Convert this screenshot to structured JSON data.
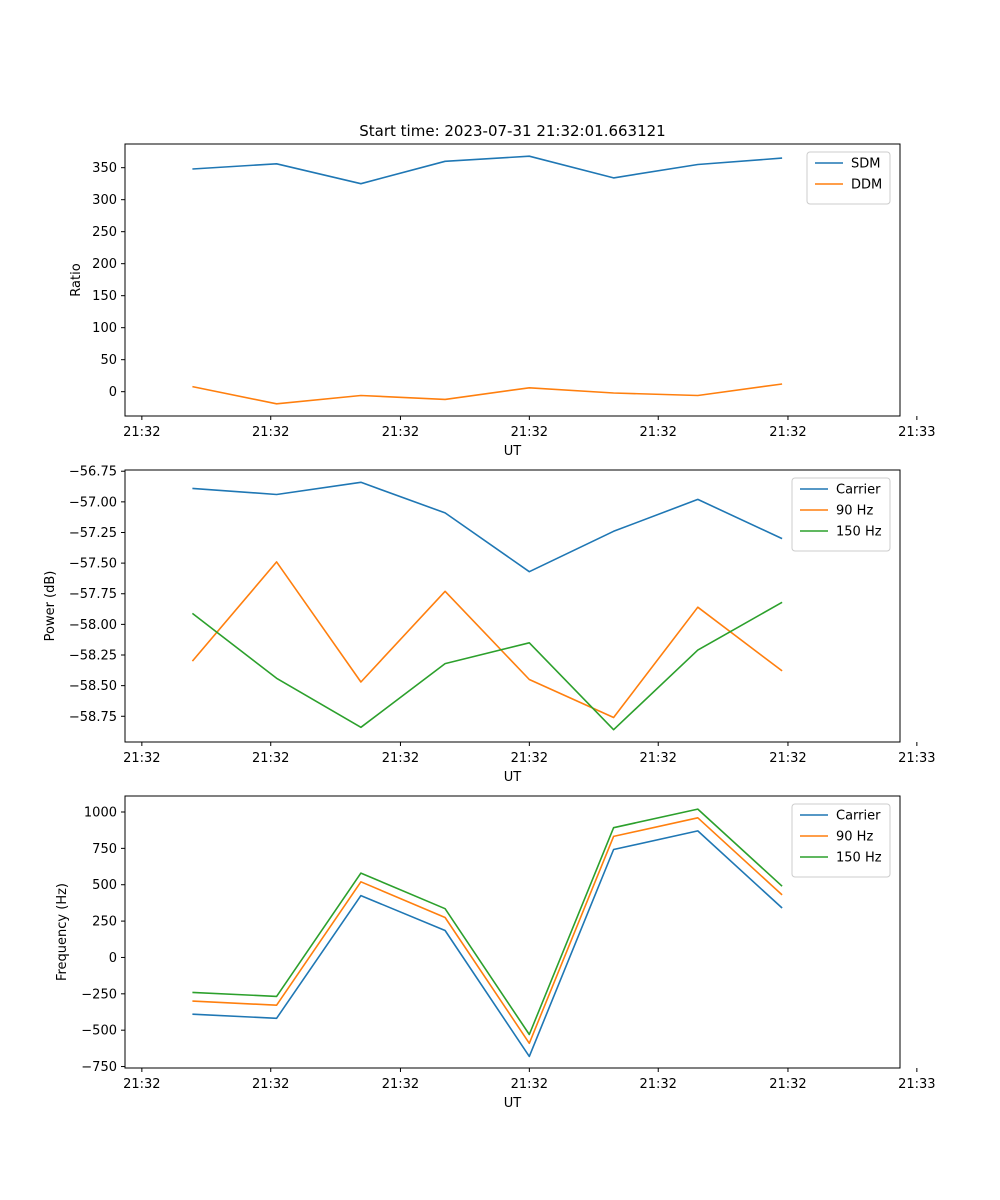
{
  "chart_data": [
    {
      "type": "line",
      "title": "Start time: 2023-07-31 21:32:01.663121",
      "xlabel": "UT",
      "ylabel": "Ratio",
      "x": [
        1,
        2,
        3,
        4,
        5,
        6,
        7,
        8
      ],
      "xlim": [
        0.2,
        9.4
      ],
      "x_ticks": [
        0.4,
        1.93,
        3.47,
        5.0,
        6.53,
        8.07,
        9.6
      ],
      "x_tick_labels": [
        "21:32",
        "21:32",
        "21:32",
        "21:32",
        "21:32",
        "21:32",
        "21:33"
      ],
      "ylim": [
        -38,
        387
      ],
      "y_ticks": [
        0,
        50,
        100,
        150,
        200,
        250,
        300,
        350
      ],
      "y_tick_labels": [
        "0",
        "50",
        "100",
        "150",
        "200",
        "250",
        "300",
        "350"
      ],
      "legend_position": "top-right",
      "series": [
        {
          "name": "SDM",
          "color": "#1f77b4",
          "values": [
            348,
            356,
            325,
            360,
            368,
            334,
            355,
            365
          ]
        },
        {
          "name": "DDM",
          "color": "#ff7f0e",
          "values": [
            8,
            -19,
            -6,
            -12,
            6,
            -2,
            -6,
            12
          ]
        }
      ]
    },
    {
      "type": "line",
      "title": "",
      "xlabel": "UT",
      "ylabel": "Power (dB)",
      "x": [
        1,
        2,
        3,
        4,
        5,
        6,
        7,
        8
      ],
      "xlim": [
        0.2,
        9.4
      ],
      "x_ticks": [
        0.4,
        1.93,
        3.47,
        5.0,
        6.53,
        8.07,
        9.6
      ],
      "x_tick_labels": [
        "21:32",
        "21:32",
        "21:32",
        "21:32",
        "21:32",
        "21:32",
        "21:33"
      ],
      "ylim": [
        -58.96,
        -56.74
      ],
      "y_ticks": [
        -58.75,
        -58.5,
        -58.25,
        -58.0,
        -57.75,
        -57.5,
        -57.25,
        -57.0,
        -56.75
      ],
      "y_tick_labels": [
        "−58.75",
        "−58.50",
        "−58.25",
        "−58.00",
        "−57.75",
        "−57.50",
        "−57.25",
        "−57.00",
        "−56.75"
      ],
      "legend_position": "top-right",
      "series": [
        {
          "name": "Carrier",
          "color": "#1f77b4",
          "values": [
            -56.89,
            -56.94,
            -56.84,
            -57.09,
            -57.57,
            -57.24,
            -56.98,
            -57.3
          ]
        },
        {
          "name": "90 Hz",
          "color": "#ff7f0e",
          "values": [
            -58.3,
            -57.49,
            -58.47,
            -57.73,
            -58.45,
            -58.76,
            -57.86,
            -58.38
          ]
        },
        {
          "name": "150 Hz",
          "color": "#2ca02c",
          "values": [
            -57.91,
            -58.44,
            -58.84,
            -58.32,
            -58.15,
            -58.86,
            -58.21,
            -57.82
          ]
        }
      ]
    },
    {
      "type": "line",
      "title": "",
      "xlabel": "UT",
      "ylabel": "Frequency (Hz)",
      "x": [
        1,
        2,
        3,
        4,
        5,
        6,
        7,
        8
      ],
      "xlim": [
        0.2,
        9.4
      ],
      "x_ticks": [
        0.4,
        1.93,
        3.47,
        5.0,
        6.53,
        8.07,
        9.6
      ],
      "x_tick_labels": [
        "21:32",
        "21:32",
        "21:32",
        "21:32",
        "21:32",
        "21:32",
        "21:33"
      ],
      "ylim": [
        -760,
        1110
      ],
      "y_ticks": [
        -750,
        -500,
        -250,
        0,
        250,
        500,
        750,
        1000
      ],
      "y_tick_labels": [
        "−750",
        "−500",
        "−250",
        "0",
        "250",
        "500",
        "750",
        "1000"
      ],
      "legend_position": "top-right",
      "series": [
        {
          "name": "Carrier",
          "color": "#1f77b4",
          "values": [
            -390,
            -418,
            425,
            185,
            -680,
            742,
            870,
            340
          ]
        },
        {
          "name": "90 Hz",
          "color": "#ff7f0e",
          "values": [
            -300,
            -328,
            520,
            275,
            -590,
            832,
            960,
            430
          ]
        },
        {
          "name": "150 Hz",
          "color": "#2ca02c",
          "values": [
            -240,
            -268,
            580,
            335,
            -530,
            892,
            1020,
            490
          ]
        }
      ]
    }
  ]
}
